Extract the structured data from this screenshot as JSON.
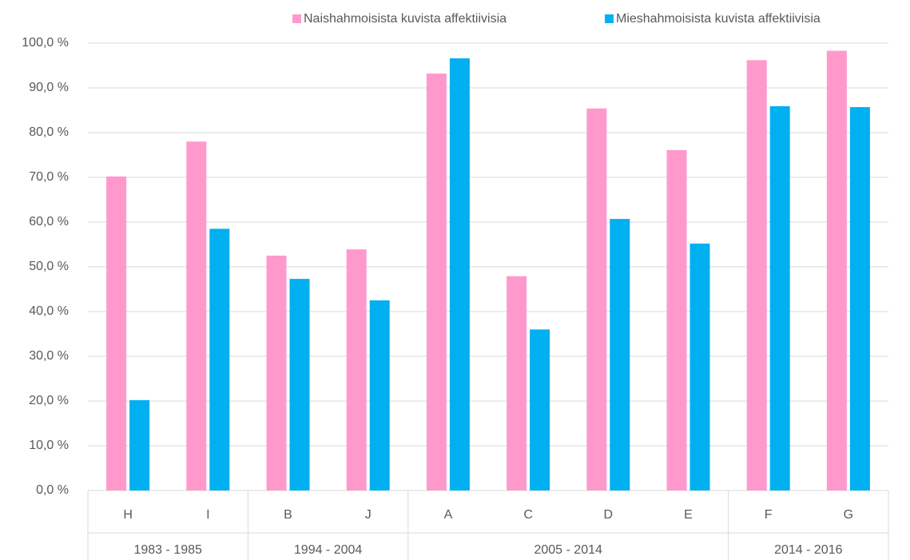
{
  "chart_data": {
    "type": "bar",
    "groups": [
      {
        "label": "1983 - 1985",
        "members": [
          "H",
          "I"
        ]
      },
      {
        "label": "1994 - 2004",
        "members": [
          "B",
          "J"
        ]
      },
      {
        "label": "2005 - 2014",
        "members": [
          "A",
          "C",
          "D",
          "E"
        ]
      },
      {
        "label": "2014 - 2016",
        "members": [
          "F",
          "G"
        ]
      }
    ],
    "series": [
      {
        "name": "Naishahmoisista kuvista affektiivisia",
        "color": "#ff99cc",
        "values": [
          70.2,
          78.0,
          52.5,
          53.9,
          93.2,
          47.9,
          85.4,
          76.1,
          96.2,
          98.3
        ]
      },
      {
        "name": "Mieshahmoisista kuvista affektiivisia",
        "color": "#00b0f0",
        "values": [
          20.2,
          58.5,
          47.3,
          42.5,
          96.6,
          36.0,
          60.7,
          55.2,
          85.9,
          85.7
        ]
      }
    ],
    "ylim": [
      0,
      100
    ],
    "yticks": [
      {
        "value": 0,
        "label": "0,0 %"
      },
      {
        "value": 10,
        "label": "10,0 %"
      },
      {
        "value": 20,
        "label": "20,0 %"
      },
      {
        "value": 30,
        "label": "30,0 %"
      },
      {
        "value": 40,
        "label": "40,0 %"
      },
      {
        "value": 50,
        "label": "50,0 %"
      },
      {
        "value": 60,
        "label": "60,0 %"
      },
      {
        "value": 70,
        "label": "70,0 %"
      },
      {
        "value": 80,
        "label": "80,0 %"
      },
      {
        "value": 90,
        "label": "90,0 %"
      },
      {
        "value": 100,
        "label": "100,0 %"
      }
    ],
    "grid": true,
    "legend": "top"
  }
}
